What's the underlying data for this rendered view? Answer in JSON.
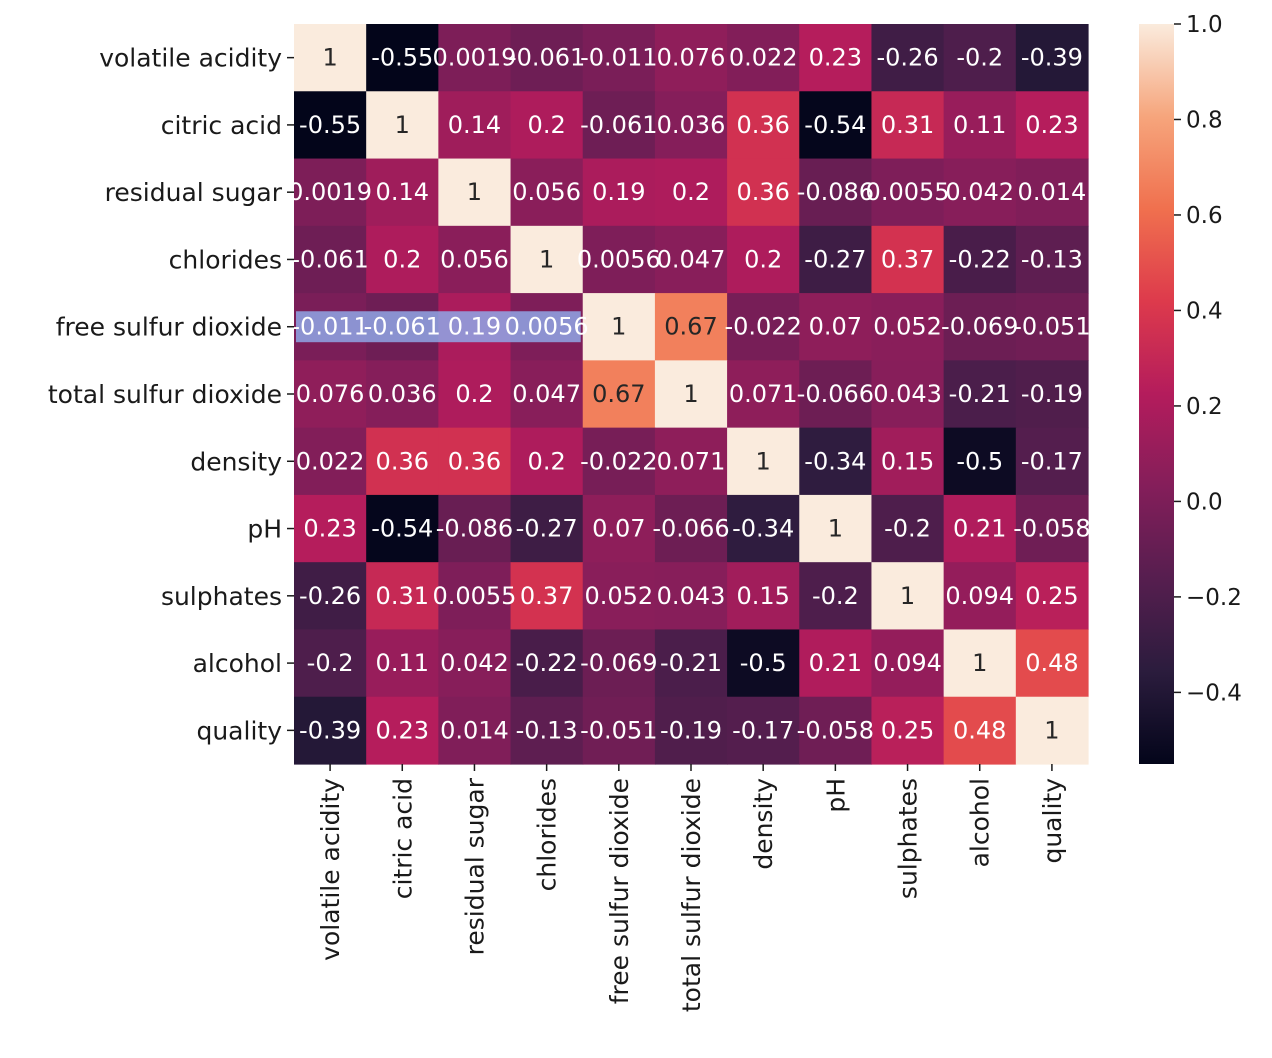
{
  "chart_data": {
    "type": "heatmap",
    "title": "",
    "xlabel": "",
    "ylabel": "",
    "rows": [
      "volatile acidity",
      "citric acid",
      "residual sugar",
      "chlorides",
      "free sulfur dioxide",
      "total sulfur dioxide",
      "density",
      "pH",
      "sulphates",
      "alcohol",
      "quality"
    ],
    "cols": [
      "volatile acidity",
      "citric acid",
      "residual sugar",
      "chlorides",
      "free sulfur dioxide",
      "total sulfur dioxide",
      "density",
      "pH",
      "sulphates",
      "alcohol",
      "quality"
    ],
    "values": [
      [
        1,
        -0.55,
        0.0019,
        -0.061,
        -0.011,
        0.076,
        0.022,
        0.23,
        -0.26,
        -0.2,
        -0.39
      ],
      [
        -0.55,
        1,
        0.14,
        0.2,
        -0.061,
        0.036,
        0.36,
        -0.54,
        0.31,
        0.11,
        0.23
      ],
      [
        0.0019,
        0.14,
        1,
        0.056,
        0.19,
        0.2,
        0.36,
        -0.086,
        0.0055,
        0.042,
        0.014
      ],
      [
        -0.061,
        0.2,
        0.056,
        1,
        0.0056,
        0.047,
        0.2,
        -0.27,
        0.37,
        -0.22,
        -0.13
      ],
      [
        -0.011,
        -0.061,
        0.19,
        0.0056,
        1,
        0.67,
        -0.022,
        0.07,
        0.052,
        -0.069,
        -0.051
      ],
      [
        0.076,
        0.036,
        0.2,
        0.047,
        0.67,
        1,
        0.071,
        -0.066,
        0.043,
        -0.21,
        -0.19
      ],
      [
        0.022,
        0.36,
        0.36,
        0.2,
        -0.022,
        0.071,
        1,
        -0.34,
        0.15,
        -0.5,
        -0.17
      ],
      [
        0.23,
        -0.54,
        -0.086,
        -0.27,
        0.07,
        -0.066,
        -0.34,
        1,
        -0.2,
        0.21,
        -0.058
      ],
      [
        -0.26,
        0.31,
        0.0055,
        0.37,
        0.052,
        0.043,
        0.15,
        -0.2,
        1,
        0.094,
        0.25
      ],
      [
        -0.2,
        0.11,
        0.042,
        -0.22,
        -0.069,
        -0.21,
        -0.5,
        0.21,
        0.094,
        1,
        0.48
      ],
      [
        -0.39,
        0.23,
        0.014,
        -0.13,
        -0.051,
        -0.19,
        -0.17,
        -0.058,
        0.25,
        0.48,
        1
      ]
    ],
    "annotations": [
      [
        "1",
        "-0.55",
        "0.0019",
        "-0.061",
        "-0.011",
        "0.076",
        "0.022",
        "0.23",
        "-0.26",
        "-0.2",
        "-0.39"
      ],
      [
        "-0.55",
        "1",
        "0.14",
        "0.2",
        "-0.061",
        "0.036",
        "0.36",
        "-0.54",
        "0.31",
        "0.11",
        "0.23"
      ],
      [
        "0.0019",
        "0.14",
        "1",
        "0.056",
        "0.19",
        "0.2",
        "0.36",
        "-0.086",
        "0.0055",
        "0.042",
        "0.014"
      ],
      [
        "-0.061",
        "0.2",
        "0.056",
        "1",
        "0.0056",
        "0.047",
        "0.2",
        "-0.27",
        "0.37",
        "-0.22",
        "-0.13"
      ],
      [
        "-0.011",
        "-0.061",
        "0.19",
        "0.0056",
        "1",
        "0.67",
        "-0.022",
        "0.07",
        "0.052",
        "-0.069",
        "-0.051"
      ],
      [
        "0.076",
        "0.036",
        "0.2",
        "0.047",
        "0.67",
        "1",
        "0.071",
        "-0.066",
        "0.043",
        "-0.21",
        "-0.19"
      ],
      [
        "0.022",
        "0.36",
        "0.36",
        "0.2",
        "-0.022",
        "0.071",
        "1",
        "-0.34",
        "0.15",
        "-0.5",
        "-0.17"
      ],
      [
        "0.23",
        "-0.54",
        "-0.086",
        "-0.27",
        "0.07",
        "-0.066",
        "-0.34",
        "1",
        "-0.2",
        "0.21",
        "-0.058"
      ],
      [
        "-0.26",
        "0.31",
        "0.0055",
        "0.37",
        "0.052",
        "0.043",
        "0.15",
        "-0.2",
        "1",
        "0.094",
        "0.25"
      ],
      [
        "-0.2",
        "0.11",
        "0.042",
        "-0.22",
        "-0.069",
        "-0.21",
        "-0.5",
        "0.21",
        "0.094",
        "1",
        "0.48"
      ],
      [
        "-0.39",
        "0.23",
        "0.014",
        "-0.13",
        "-0.051",
        "-0.19",
        "-0.17",
        "-0.058",
        "0.25",
        "0.48",
        "1"
      ]
    ],
    "colorscale": {
      "name": "rocket",
      "vmin": -0.55,
      "vmax": 1.0,
      "stops": [
        "#03051a",
        "#2b1c3d",
        "#561e4f",
        "#841e5a",
        "#b41c5c",
        "#dd3a4c",
        "#f0704e",
        "#f6a57c",
        "#faebdd"
      ]
    },
    "colorbar": {
      "ticks": [
        1.0,
        0.8,
        0.6,
        0.4,
        0.2,
        0.0,
        -0.2,
        -0.4
      ],
      "tick_labels": [
        "1.0",
        "0.8",
        "0.6",
        "0.4",
        "0.2",
        "0.0",
        "−0.2",
        "−0.4"
      ]
    },
    "highlight": {
      "row": 4,
      "cols": [
        0,
        1,
        2,
        3
      ],
      "color": "#8fa7e6"
    },
    "legend": "colorbar-right"
  }
}
